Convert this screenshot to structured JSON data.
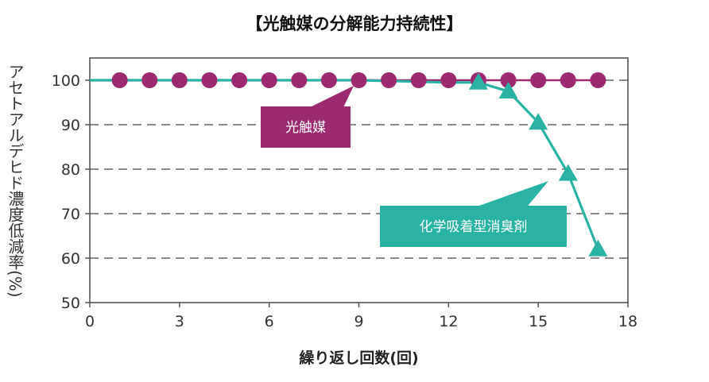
{
  "chart_data": {
    "type": "line",
    "title": "【光触媒の分解能力持続性】",
    "xlabel": "繰り返し回数(回)",
    "ylabel": "アセトアルデヒド濃度低減率(%)",
    "xlim": [
      0,
      18
    ],
    "ylim": [
      50,
      105
    ],
    "xticks": [
      0,
      3,
      6,
      9,
      12,
      15,
      18
    ],
    "yticks": [
      50,
      60,
      70,
      80,
      90,
      100
    ],
    "grid": "horizontal-dashed",
    "series": [
      {
        "name": "光触媒",
        "color": "#9b2a6e",
        "marker": "circle",
        "x": [
          0,
          1,
          2,
          3,
          4,
          5,
          6,
          7,
          8,
          9,
          10,
          11,
          12,
          13,
          14,
          15,
          16,
          17
        ],
        "y": [
          100,
          100,
          100,
          100,
          100,
          100,
          100,
          100,
          100,
          100,
          100,
          100,
          100,
          100,
          100,
          100,
          100,
          100
        ],
        "marker_x": [
          1,
          2,
          3,
          4,
          5,
          6,
          7,
          8,
          9,
          10,
          11,
          12,
          13,
          14,
          15,
          16,
          17
        ]
      },
      {
        "name": "化学吸着型消臭剤",
        "color": "#2ab3a3",
        "marker": "triangle",
        "x": [
          0,
          9,
          12,
          13,
          14,
          15,
          16,
          17
        ],
        "y": [
          100,
          100,
          99.5,
          99.5,
          97.5,
          90.5,
          79,
          62
        ],
        "marker_x": [
          13,
          14,
          15,
          16,
          17
        ]
      }
    ]
  }
}
